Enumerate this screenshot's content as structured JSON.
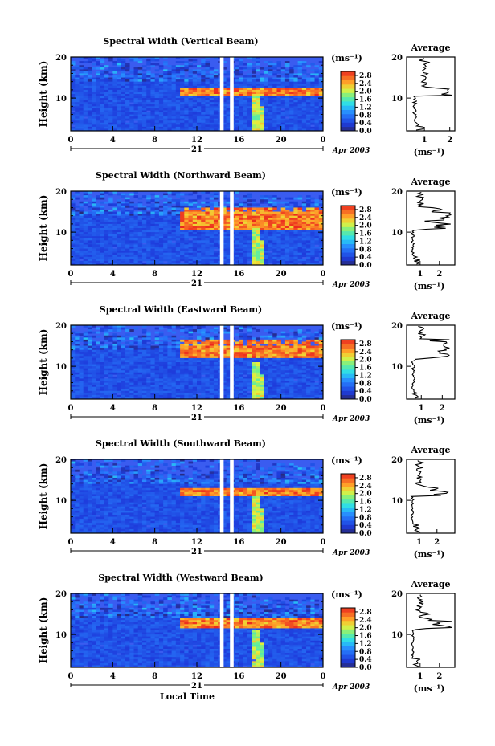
{
  "chart_data": [
    {
      "type": "heatmap",
      "title": "Spectral Width (Vertical Beam)",
      "ylabel": "Height (km)",
      "x_ticks": [
        "0",
        "4",
        "8",
        "12",
        "16",
        "20",
        "0"
      ],
      "day_label": "21",
      "date_label": "Apr 2003",
      "xlim": [
        0,
        24
      ],
      "ylim": [
        2,
        20
      ],
      "y_ticks": [
        "10",
        "20"
      ],
      "colorbar": {
        "unit": "(ms⁻¹)",
        "ticks": [
          "0.0",
          "0.4",
          "0.8",
          "1.2",
          "1.6",
          "2.0",
          "2.4",
          "2.8"
        ],
        "range": [
          0,
          3.0
        ]
      },
      "gaps_hours": [
        [
          14.2,
          14.55
        ],
        [
          15.15,
          15.5
        ]
      ],
      "high_layer_km": [
        10.5,
        12.5
      ],
      "layer_start_hour": 10.5,
      "avg_profile": {
        "title": "Average",
        "xlabel": "(ms⁻¹)",
        "x_ticks": [
          "1",
          "2"
        ],
        "xlim": [
          0.3,
          2.2
        ],
        "y_ticks": [
          "10",
          "20"
        ],
        "peaks": [
          {
            "h": 11.5,
            "v": 1.9
          },
          {
            "h": 12.5,
            "v": 1.4
          },
          {
            "h": 15.5,
            "v": 0.9
          }
        ]
      }
    },
    {
      "type": "heatmap",
      "title": "Spectral Width (Northward Beam)",
      "ylabel": "Height (km)",
      "x_ticks": [
        "0",
        "4",
        "8",
        "12",
        "16",
        "20",
        "0"
      ],
      "day_label": "21",
      "date_label": "Apr 2003",
      "xlim": [
        0,
        24
      ],
      "ylim": [
        2,
        20
      ],
      "y_ticks": [
        "10",
        "20"
      ],
      "colorbar": {
        "unit": "(ms⁻¹)",
        "ticks": [
          "0.0",
          "0.4",
          "0.8",
          "1.2",
          "1.6",
          "2.0",
          "2.4",
          "2.8"
        ],
        "range": [
          0,
          3.0
        ]
      },
      "gaps_hours": [
        [
          14.2,
          14.55
        ],
        [
          15.15,
          15.5
        ]
      ],
      "high_layer_km": [
        10.5,
        16.0
      ],
      "layer_start_hour": 10.5,
      "avg_profile": {
        "title": "Average",
        "xlabel": "(ms⁻¹)",
        "x_ticks": [
          "1",
          "2"
        ],
        "xlim": [
          0.3,
          2.8
        ],
        "y_ticks": [
          "10",
          "20"
        ],
        "peaks": [
          {
            "h": 12.0,
            "v": 2.4
          },
          {
            "h": 14.0,
            "v": 2.3
          },
          {
            "h": 15.5,
            "v": 2.1
          }
        ]
      }
    },
    {
      "type": "heatmap",
      "title": "Spectral Width (Eastward Beam)",
      "ylabel": "Height (km)",
      "x_ticks": [
        "0",
        "4",
        "8",
        "12",
        "16",
        "20",
        "0"
      ],
      "day_label": "21",
      "date_label": "Apr 2003",
      "xlim": [
        0,
        24
      ],
      "ylim": [
        2,
        20
      ],
      "y_ticks": [
        "10",
        "20"
      ],
      "colorbar": {
        "unit": "(ms⁻¹)",
        "ticks": [
          "0.0",
          "0.4",
          "0.8",
          "1.2",
          "1.6",
          "2.0",
          "2.4",
          "2.8"
        ],
        "range": [
          0,
          3.0
        ]
      },
      "gaps_hours": [
        [
          14.2,
          14.55
        ],
        [
          15.15,
          15.5
        ]
      ],
      "high_layer_km": [
        12.0,
        16.5
      ],
      "layer_start_hour": 10.5,
      "avg_profile": {
        "title": "Average",
        "xlabel": "(ms⁻¹)",
        "x_ticks": [
          "1",
          "2"
        ],
        "xlim": [
          0.3,
          2.6
        ],
        "y_ticks": [
          "10",
          "20"
        ],
        "peaks": [
          {
            "h": 12.5,
            "v": 2.2
          },
          {
            "h": 14.0,
            "v": 2.3
          },
          {
            "h": 15.5,
            "v": 2.0
          }
        ]
      }
    },
    {
      "type": "heatmap",
      "title": "Spectral Width (Southward Beam)",
      "ylabel": "Height (km)",
      "x_ticks": [
        "0",
        "4",
        "8",
        "12",
        "16",
        "20",
        "0"
      ],
      "day_label": "21",
      "date_label": "Apr 2003",
      "xlim": [
        0,
        24
      ],
      "ylim": [
        2,
        20
      ],
      "y_ticks": [
        "10",
        "20"
      ],
      "colorbar": {
        "unit": "(ms⁻¹)",
        "ticks": [
          "0.0",
          "0.4",
          "0.8",
          "1.2",
          "1.6",
          "2.0",
          "2.4",
          "2.8"
        ],
        "range": [
          0,
          3.0
        ]
      },
      "gaps_hours": [
        [
          14.2,
          14.55
        ],
        [
          15.15,
          15.5
        ]
      ],
      "high_layer_km": [
        11.0,
        13.0
      ],
      "layer_start_hour": 10.5,
      "avg_profile": {
        "title": "Average",
        "xlabel": "(ms⁻¹)",
        "x_ticks": [
          "1",
          "2"
        ],
        "xlim": [
          0.3,
          3.0
        ],
        "y_ticks": [
          "10",
          "20"
        ],
        "peaks": [
          {
            "h": 12.0,
            "v": 2.7
          },
          {
            "h": 13.0,
            "v": 2.0
          }
        ]
      }
    },
    {
      "type": "heatmap",
      "title": "Spectral Width (Westward Beam)",
      "ylabel": "Height (km)",
      "x_ticks": [
        "0",
        "4",
        "8",
        "12",
        "16",
        "20",
        "0"
      ],
      "day_label": "21",
      "date_label": "Apr 2003",
      "xlabel": "Local Time",
      "xlim": [
        0,
        24
      ],
      "ylim": [
        2,
        20
      ],
      "y_ticks": [
        "10",
        "20"
      ],
      "colorbar": {
        "unit": "(ms⁻¹)",
        "ticks": [
          "0.0",
          "0.4",
          "0.8",
          "1.2",
          "1.6",
          "2.0",
          "2.4",
          "2.8"
        ],
        "range": [
          0,
          3.0
        ]
      },
      "gaps_hours": [
        [
          14.2,
          14.55
        ],
        [
          15.15,
          15.5
        ]
      ],
      "high_layer_km": [
        11.5,
        14.0
      ],
      "layer_start_hour": 10.5,
      "avg_profile": {
        "title": "Average",
        "xlabel": "(ms⁻¹)",
        "x_ticks": [
          "1",
          "2"
        ],
        "xlim": [
          0.3,
          2.8
        ],
        "y_ticks": [
          "10",
          "20"
        ],
        "peaks": [
          {
            "h": 12.0,
            "v": 2.5
          },
          {
            "h": 13.0,
            "v": 2.1
          },
          {
            "h": 15.0,
            "v": 1.6
          }
        ]
      }
    }
  ]
}
